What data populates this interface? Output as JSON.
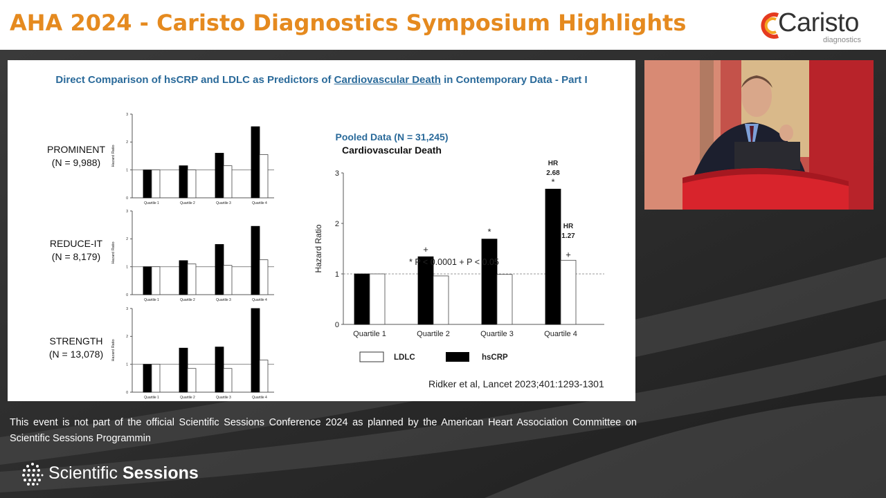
{
  "header": {
    "title": "AHA 2024 - Caristo Diagnostics Symposium Highlights",
    "logo_word": "Caristo",
    "logo_sub": "diagnostics"
  },
  "slide": {
    "title_pre": "Direct Comparison of hsCRP and LDLC as Predictors of ",
    "title_underlined": "Cardiovascular Death",
    "title_post": " in Contemporary Data - Part I",
    "citation": "Ridker et al, Lancet 2023;401:1293-1301"
  },
  "colors": {
    "hscrp": "#000000",
    "ldlc": "#ffffff",
    "header_title": "#e58a1f",
    "slide_title": "#2a6a9a",
    "pooled_title": "#2a6a9a"
  },
  "chart_data": [
    {
      "type": "bar",
      "trial": "PROMINENT",
      "n": "(N = 9,988)",
      "categories": [
        "Quartile 1",
        "Quartile 2",
        "Quartile 3",
        "Quartile 4"
      ],
      "series": [
        {
          "name": "hsCRP",
          "values": [
            1.0,
            1.15,
            1.6,
            2.55
          ]
        },
        {
          "name": "LDLC",
          "values": [
            1.0,
            1.0,
            1.15,
            1.55
          ]
        }
      ],
      "ylabel": "Hazard Ratio",
      "ylim": [
        0,
        3
      ],
      "yticks": [
        "0",
        "1",
        "2",
        "3"
      ],
      "reference_line": 1
    },
    {
      "type": "bar",
      "trial": "REDUCE-IT",
      "n": "(N = 8,179)",
      "categories": [
        "Quartile 1",
        "Quartile 2",
        "Quartile 3",
        "Quartile 4"
      ],
      "series": [
        {
          "name": "hsCRP",
          "values": [
            1.0,
            1.22,
            1.8,
            2.45
          ]
        },
        {
          "name": "LDLC",
          "values": [
            1.0,
            1.1,
            1.05,
            1.25
          ]
        }
      ],
      "ylabel": "Hazard Ratio",
      "ylim": [
        0,
        3
      ],
      "yticks": [
        "0",
        "1",
        "2",
        "3"
      ],
      "reference_line": 1
    },
    {
      "type": "bar",
      "trial": "STRENGTH",
      "n": "(N = 13,078)",
      "categories": [
        "Quartile 1",
        "Quartile 2",
        "Quartile 3",
        "Quartile 4"
      ],
      "series": [
        {
          "name": "hsCRP",
          "values": [
            1.0,
            1.58,
            1.62,
            3.0
          ]
        },
        {
          "name": "LDLC",
          "values": [
            1.0,
            0.85,
            0.85,
            1.15
          ]
        }
      ],
      "ylabel": "Hazard Ratio",
      "ylim": [
        0,
        3
      ],
      "yticks": [
        "0",
        "1",
        "2",
        "3"
      ],
      "reference_line": 1
    },
    {
      "type": "bar",
      "title": "Pooled Data (N = 31,245)",
      "subtitle": "Cardiovascular Death",
      "categories": [
        "Quartile 1",
        "Quartile 2",
        "Quartile 3",
        "Quartile 4"
      ],
      "series": [
        {
          "name": "hsCRP",
          "values": [
            1.0,
            1.34,
            1.69,
            2.68
          ],
          "markers": [
            "",
            "+",
            "*",
            "*"
          ]
        },
        {
          "name": "LDLC",
          "values": [
            1.0,
            0.96,
            0.99,
            1.27
          ],
          "markers": [
            "",
            "",
            "",
            "+"
          ]
        }
      ],
      "ylabel": "Hazard Ratio",
      "ylim": [
        0,
        3
      ],
      "yticks": [
        "0",
        "1",
        "2",
        "3"
      ],
      "reference_line": 1,
      "annotations": [
        {
          "text": "HR",
          "value": "2.68"
        },
        {
          "text": "HR",
          "value": "1.27"
        }
      ],
      "significance": "*  P < 0.0001    + P < 0.05",
      "legend": [
        {
          "name": "LDLC"
        },
        {
          "name": "hsCRP"
        }
      ]
    }
  ],
  "footer": {
    "disclaimer": "This event is not part of the official Scientific Sessions Conference 2024 as planned by the American Heart Association Committee on Scientific Sessions Programmin",
    "brand_light": "Scientific ",
    "brand_bold": "Sessions"
  }
}
